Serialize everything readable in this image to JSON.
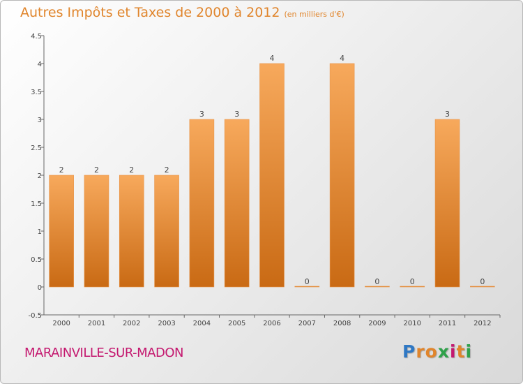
{
  "title": "Autres Impôts et Taxes de 2000 à 2012",
  "subtitle": "(en milliers d'€)",
  "city": "MARAINVILLE-SUR-MADON",
  "logo": {
    "letters": [
      "P",
      "r",
      "o",
      "x",
      "i",
      "t",
      "i"
    ],
    "colors": [
      "#2f78c4",
      "#e0852c",
      "#e0852c",
      "#2fa14a",
      "#c4186f",
      "#e0852c",
      "#2fa14a"
    ]
  },
  "colors": {
    "bar_light": "#f7a95c",
    "bar_dark": "#c96a14",
    "title": "#e0852c",
    "city": "#c4186f"
  },
  "chart_data": {
    "type": "bar",
    "categories": [
      "2000",
      "2001",
      "2002",
      "2003",
      "2004",
      "2005",
      "2006",
      "2007",
      "2008",
      "2009",
      "2010",
      "2011",
      "2012"
    ],
    "values": [
      2,
      2,
      2,
      2,
      3,
      3,
      4,
      0,
      4,
      0,
      0,
      3,
      0
    ],
    "data_labels": [
      "2",
      "2",
      "2",
      "2",
      "3",
      "3",
      "4",
      "0",
      "4",
      "0",
      "0",
      "3",
      "0"
    ],
    "yticks": [
      "-0.5",
      "0",
      "0.5",
      "1",
      "1.5",
      "2",
      "2.5",
      "3",
      "3.5",
      "4",
      "4.5"
    ],
    "ytick_values": [
      -0.5,
      0,
      0.5,
      1,
      1.5,
      2,
      2.5,
      3,
      3.5,
      4,
      4.5
    ],
    "ylim": [
      -0.5,
      4.5
    ],
    "grid": false,
    "legend": "none"
  }
}
